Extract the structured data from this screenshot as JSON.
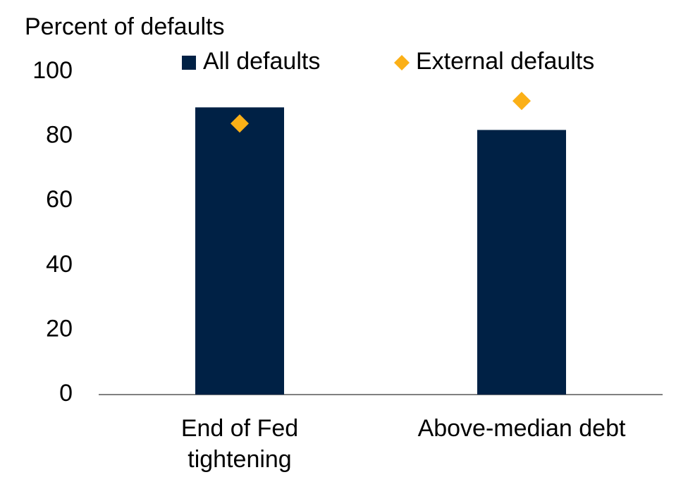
{
  "chart_data": {
    "type": "bar",
    "y_label": "Percent of defaults",
    "categories": [
      "End of Fed tightening",
      "Above-median debt"
    ],
    "series": [
      {
        "name": "All defaults",
        "color": "#002145",
        "type": "bar",
        "values": [
          89,
          82
        ]
      },
      {
        "name": "External defaults",
        "color": "#fbb017",
        "type": "scatter",
        "values": [
          84,
          91
        ]
      }
    ],
    "ylim": [
      0,
      100
    ],
    "yticks": [
      0,
      20,
      40,
      60,
      80,
      100
    ],
    "grid": false
  }
}
